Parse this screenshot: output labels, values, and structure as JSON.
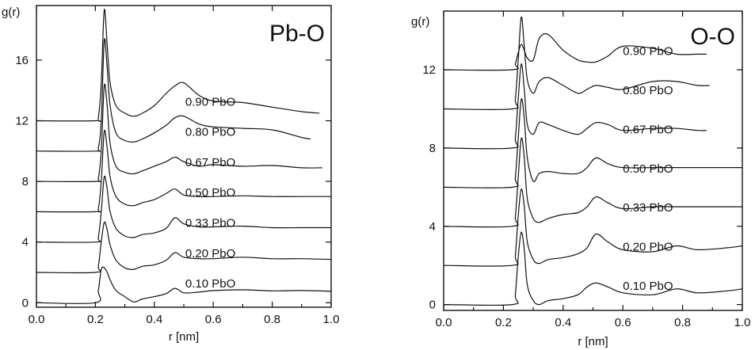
{
  "chart_data": [
    {
      "type": "line",
      "title": "Pb-O",
      "xlabel": "r [nm]",
      "ylabel": "g(r)",
      "xlim": [
        0.0,
        1.0
      ],
      "ylim": [
        -0.3,
        19.6
      ],
      "xticks": [
        "0.0",
        "0.2",
        "0.4",
        "0.6",
        "0.8",
        "1.0"
      ],
      "yticks": [
        "0",
        "4",
        "8",
        "12",
        "16"
      ],
      "grid": false,
      "series": [
        {
          "name": "0.10 PbO",
          "offset": 0,
          "x_end": 1.0,
          "x": [
            0.0,
            0.2,
            0.21,
            0.22,
            0.23,
            0.24,
            0.25,
            0.27,
            0.3,
            0.33,
            0.36,
            0.4,
            0.44,
            0.47,
            0.5,
            0.55,
            0.6,
            0.7,
            0.8,
            0.9,
            1.0
          ],
          "y": [
            0,
            0,
            0.8,
            2.2,
            2.3,
            2.0,
            1.5,
            0.8,
            0.4,
            0.05,
            0.25,
            0.4,
            0.6,
            0.95,
            0.65,
            0.7,
            0.8,
            0.85,
            0.78,
            0.8,
            0.75
          ]
        },
        {
          "name": "0.20 PbO",
          "offset": 2,
          "x_end": 1.0,
          "x": [
            0.0,
            0.2,
            0.21,
            0.22,
            0.23,
            0.24,
            0.25,
            0.27,
            0.3,
            0.33,
            0.36,
            0.4,
            0.44,
            0.47,
            0.5,
            0.55,
            0.6,
            0.7,
            0.8,
            0.9,
            1.0
          ],
          "y": [
            0,
            0,
            0.4,
            2.0,
            3.3,
            2.8,
            1.8,
            0.8,
            0.3,
            0.2,
            0.4,
            0.5,
            0.8,
            1.3,
            1.0,
            0.9,
            0.9,
            1.0,
            0.9,
            0.9,
            0.85
          ]
        },
        {
          "name": "0.33 PbO",
          "offset": 4,
          "x_end": 1.0,
          "x": [
            0.0,
            0.2,
            0.21,
            0.22,
            0.23,
            0.24,
            0.25,
            0.27,
            0.3,
            0.33,
            0.36,
            0.4,
            0.44,
            0.47,
            0.5,
            0.55,
            0.6,
            0.7,
            0.8,
            0.9,
            1.0
          ],
          "y": [
            0,
            0,
            0.3,
            2.0,
            4.3,
            3.5,
            2.0,
            0.9,
            0.4,
            0.3,
            0.5,
            0.6,
            0.9,
            1.6,
            1.2,
            1.0,
            1.0,
            1.05,
            0.95,
            0.95,
            0.95
          ]
        },
        {
          "name": "0.50 PbO",
          "offset": 6,
          "x_end": 1.0,
          "x": [
            0.0,
            0.2,
            0.21,
            0.22,
            0.23,
            0.24,
            0.25,
            0.27,
            0.3,
            0.33,
            0.36,
            0.4,
            0.44,
            0.47,
            0.5,
            0.55,
            0.6,
            0.7,
            0.8,
            0.9,
            1.0
          ],
          "y": [
            0,
            0,
            0.2,
            2.0,
            5.3,
            4.2,
            2.3,
            1.0,
            0.5,
            0.4,
            0.6,
            0.8,
            1.2,
            1.5,
            1.1,
            1.0,
            1.0,
            1.05,
            1.0,
            1.0,
            1.0
          ]
        },
        {
          "name": "0.67 PbO",
          "offset": 8,
          "x_end": 0.97,
          "x": [
            0.0,
            0.2,
            0.21,
            0.22,
            0.23,
            0.24,
            0.25,
            0.27,
            0.3,
            0.33,
            0.36,
            0.4,
            0.44,
            0.47,
            0.5,
            0.55,
            0.6,
            0.7,
            0.8,
            0.9,
            0.97
          ],
          "y": [
            0,
            0,
            0.2,
            2.0,
            6.3,
            5.0,
            2.5,
            1.0,
            0.6,
            0.5,
            0.7,
            1.0,
            1.3,
            1.6,
            1.3,
            1.0,
            1.1,
            1.0,
            1.05,
            0.9,
            0.9
          ]
        },
        {
          "name": "0.80 PbO",
          "offset": 10,
          "x_end": 0.93,
          "x": [
            0.0,
            0.2,
            0.21,
            0.22,
            0.23,
            0.24,
            0.25,
            0.27,
            0.3,
            0.33,
            0.36,
            0.4,
            0.44,
            0.47,
            0.5,
            0.55,
            0.6,
            0.7,
            0.8,
            0.9,
            0.93
          ],
          "y": [
            0,
            0,
            0.2,
            2.0,
            7.3,
            5.5,
            3.0,
            1.2,
            0.7,
            0.6,
            0.8,
            1.2,
            1.7,
            2.2,
            2.3,
            1.8,
            1.6,
            1.5,
            1.4,
            0.9,
            0.8
          ]
        },
        {
          "name": "0.90 PbO",
          "offset": 12,
          "x_end": 0.96,
          "x": [
            0.0,
            0.2,
            0.21,
            0.22,
            0.23,
            0.24,
            0.25,
            0.27,
            0.3,
            0.33,
            0.36,
            0.4,
            0.44,
            0.47,
            0.5,
            0.55,
            0.6,
            0.7,
            0.8,
            0.9,
            0.96
          ],
          "y": [
            0,
            0,
            0.2,
            2.5,
            7.3,
            5.0,
            2.5,
            1.0,
            0.5,
            0.3,
            0.5,
            1.0,
            1.8,
            2.3,
            2.5,
            1.7,
            1.3,
            1.2,
            0.9,
            0.6,
            0.5
          ]
        }
      ]
    },
    {
      "type": "line",
      "title": "O-O",
      "xlabel": "r [nm]",
      "ylabel": "g(r)",
      "xlim": [
        0.0,
        1.0
      ],
      "ylim": [
        -0.3,
        15.0
      ],
      "xticks": [
        "0.0",
        "0.2",
        "0.4",
        "0.6",
        "0.8",
        "1.0"
      ],
      "yticks": [
        "0",
        "4",
        "8",
        "12"
      ],
      "grid": false,
      "series": [
        {
          "name": "0.10 PbO",
          "offset": 0,
          "x_end": 1.0,
          "x": [
            0.0,
            0.23,
            0.24,
            0.25,
            0.26,
            0.27,
            0.28,
            0.3,
            0.32,
            0.35,
            0.4,
            0.45,
            0.48,
            0.51,
            0.55,
            0.6,
            0.7,
            0.78,
            0.85,
            0.95,
            1.0
          ],
          "y": [
            0,
            0,
            0.5,
            2.5,
            3.7,
            2.8,
            1.0,
            0.2,
            0.0,
            0.2,
            0.3,
            0.5,
            0.9,
            1.1,
            0.9,
            0.6,
            0.5,
            0.8,
            0.6,
            0.7,
            0.8
          ]
        },
        {
          "name": "0.20 PbO",
          "offset": 2,
          "x_end": 1.0,
          "x": [
            0.0,
            0.23,
            0.24,
            0.25,
            0.26,
            0.27,
            0.28,
            0.3,
            0.32,
            0.35,
            0.4,
            0.45,
            0.48,
            0.51,
            0.55,
            0.6,
            0.7,
            0.78,
            0.85,
            0.95,
            1.0
          ],
          "y": [
            0,
            0,
            0.5,
            2.6,
            3.9,
            3.0,
            1.2,
            0.3,
            0.1,
            0.3,
            0.4,
            0.6,
            0.9,
            1.6,
            1.2,
            0.8,
            0.7,
            1.0,
            0.8,
            0.9,
            1.0
          ]
        },
        {
          "name": "0.33 PbO",
          "offset": 4,
          "x_end": 1.0,
          "x": [
            0.0,
            0.23,
            0.24,
            0.25,
            0.26,
            0.27,
            0.28,
            0.3,
            0.32,
            0.35,
            0.4,
            0.45,
            0.48,
            0.51,
            0.55,
            0.6,
            0.7,
            0.78,
            0.85,
            0.95,
            1.0
          ],
          "y": [
            0,
            0,
            0.5,
            2.6,
            4.5,
            3.5,
            1.4,
            0.4,
            0.2,
            0.4,
            0.6,
            0.7,
            1.0,
            1.5,
            1.2,
            0.9,
            1.0,
            1.0,
            1.0,
            1.0,
            1.0
          ]
        },
        {
          "name": "0.50 PbO",
          "offset": 6,
          "x_end": 1.0,
          "x": [
            0.0,
            0.23,
            0.24,
            0.25,
            0.26,
            0.27,
            0.28,
            0.3,
            0.32,
            0.35,
            0.4,
            0.45,
            0.48,
            0.51,
            0.55,
            0.6,
            0.7,
            0.78,
            0.85,
            0.95,
            1.0
          ],
          "y": [
            0,
            0,
            0.5,
            2.6,
            4.5,
            3.5,
            1.5,
            0.3,
            0.7,
            0.8,
            0.7,
            0.7,
            1.0,
            1.5,
            1.2,
            1.0,
            1.0,
            1.0,
            1.0,
            1.0,
            1.0
          ]
        },
        {
          "name": "0.67 PbO",
          "offset": 8,
          "x_end": 0.88,
          "x": [
            0.0,
            0.23,
            0.24,
            0.25,
            0.26,
            0.27,
            0.28,
            0.3,
            0.32,
            0.35,
            0.4,
            0.45,
            0.48,
            0.51,
            0.55,
            0.6,
            0.7,
            0.78,
            0.85,
            0.88
          ],
          "y": [
            0,
            0,
            0.5,
            2.6,
            4.3,
            3.0,
            1.2,
            0.7,
            1.3,
            1.2,
            0.9,
            0.7,
            1.0,
            1.3,
            1.2,
            0.9,
            1.0,
            1.0,
            0.9,
            0.9
          ]
        },
        {
          "name": "0.80 PbO",
          "offset": 10,
          "x_end": 0.89,
          "x": [
            0.0,
            0.23,
            0.24,
            0.25,
            0.26,
            0.27,
            0.28,
            0.3,
            0.32,
            0.35,
            0.4,
            0.45,
            0.48,
            0.51,
            0.55,
            0.6,
            0.7,
            0.78,
            0.85,
            0.89
          ],
          "y": [
            0,
            0,
            0.5,
            2.6,
            4.7,
            3.2,
            1.5,
            0.8,
            1.4,
            1.6,
            1.2,
            0.8,
            1.0,
            1.2,
            1.1,
            1.0,
            1.4,
            1.4,
            1.2,
            1.2
          ]
        },
        {
          "name": "0.90 PbO",
          "offset": 12,
          "x_end": 0.88,
          "x": [
            0.0,
            0.23,
            0.24,
            0.25,
            0.26,
            0.27,
            0.28,
            0.3,
            0.32,
            0.35,
            0.4,
            0.45,
            0.48,
            0.51,
            0.55,
            0.6,
            0.7,
            0.78,
            0.85,
            0.88
          ],
          "y": [
            0,
            0,
            0.3,
            0.9,
            1.3,
            1.0,
            0.6,
            0.5,
            1.6,
            1.8,
            1.0,
            0.5,
            0.4,
            0.4,
            0.7,
            1.2,
            1.1,
            0.8,
            0.8,
            0.8
          ]
        }
      ]
    }
  ]
}
